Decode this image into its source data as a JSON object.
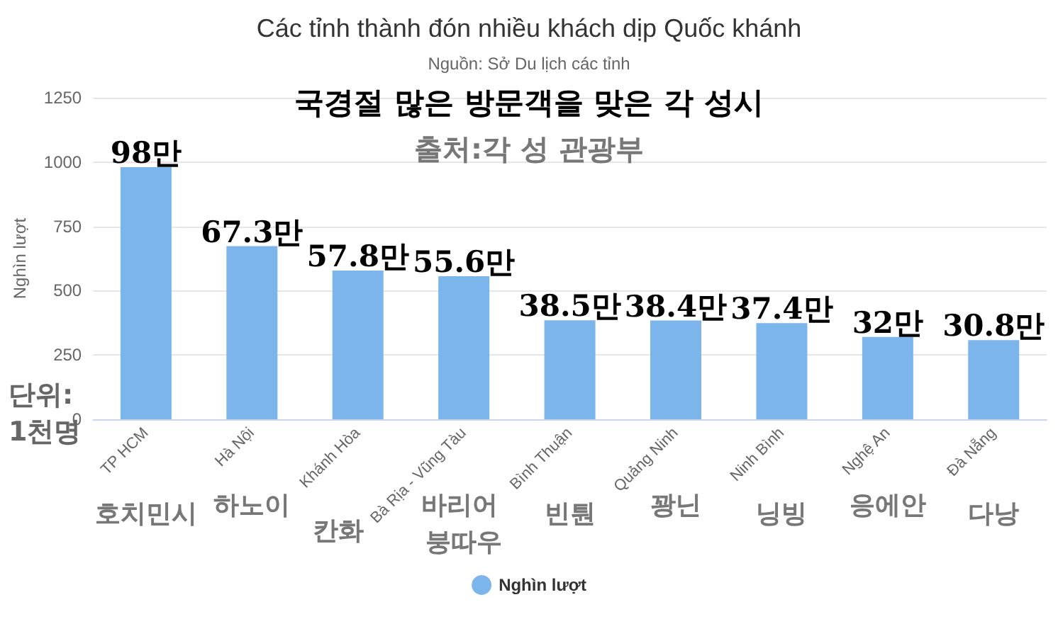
{
  "chart_data": {
    "type": "bar",
    "title": "Các tỉnh thành đón nhiều khách dịp Quốc khánh",
    "subtitle": "Nguồn: Sở Du lịch các tỉnh",
    "ylabel": "Nghìn lượt",
    "categories": [
      "TP HCM",
      "Hà Nội",
      "Khánh Hòa",
      "Bà Rịa - Vũng Tàu",
      "Bình Thuận",
      "Quảng Ninh",
      "Ninh Bình",
      "Nghệ An",
      "Đà Nẵng"
    ],
    "series": [
      {
        "name": "Nghìn lượt",
        "color": "#7cb5ec",
        "values": [
          980,
          673,
          578,
          556,
          385,
          384,
          374,
          320,
          308
        ]
      }
    ],
    "ylim": [
      0,
      1250
    ],
    "yticks": [
      0,
      250,
      500,
      750,
      1000,
      1250
    ],
    "grid": "y",
    "legend": "bottom",
    "annotations": [
      "국경절 많은 방문객을 맞은 각 성시",
      "출처:각 성 관광부",
      "단위: 1천명",
      "호치민시",
      "하노이",
      "칸화",
      "바리어 붕따우",
      "빈퉌",
      "꽝닌",
      "닝빙",
      "응에안",
      "다낭",
      {
        "text": "98만",
        "x": "TP HCM",
        "y": 980
      },
      {
        "text": "67.3만",
        "x": "Hà Nội",
        "y": 673
      },
      {
        "text": "57.8만",
        "x": "Khánh Hòa",
        "y": 578
      },
      {
        "text": "55.6만",
        "x": "Bà Rịa - Vũng Tàu",
        "y": 556
      },
      {
        "text": "38.5만",
        "x": "Bình Thuận",
        "y": 385
      },
      {
        "text": "38.4만",
        "x": "Quảng Ninh",
        "y": 384
      },
      {
        "text": "37.4만",
        "x": "Ninh Bình",
        "y": 374
      },
      {
        "text": "32만",
        "x": "Nghệ An",
        "y": 320
      },
      {
        "text": "30.8만",
        "x": "Đà Nẵng",
        "y": 308
      }
    ]
  }
}
